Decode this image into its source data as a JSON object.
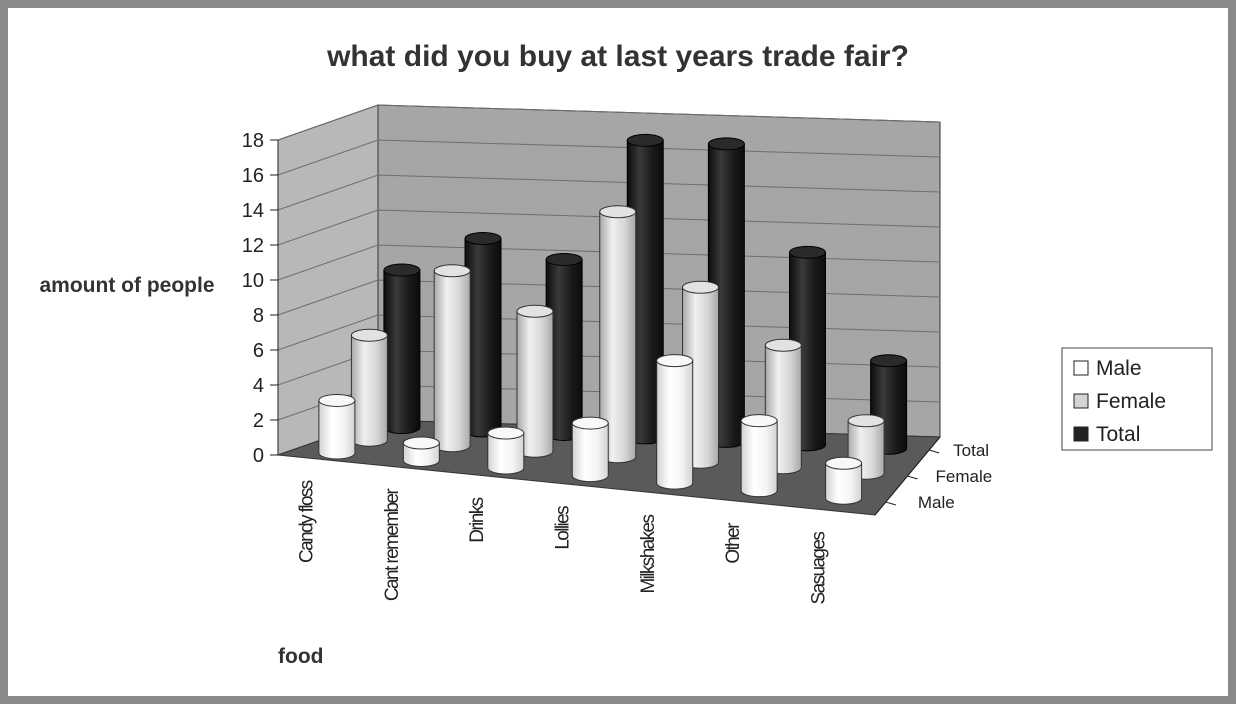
{
  "chart_data": {
    "type": "bar",
    "style": "3d-cylinder",
    "title": "what did you buy at last years trade fair?",
    "xlabel": "food",
    "ylabel": "amount of people",
    "ylim": [
      0,
      18
    ],
    "yticks": [
      "0",
      "2",
      "4",
      "6",
      "8",
      "10",
      "12",
      "14",
      "16",
      "18"
    ],
    "grid": true,
    "legend_position": "right",
    "categories": [
      "Candy floss",
      "Cant remember",
      "Drinks",
      "Lollies",
      "Milkshakes",
      "Other",
      "Sasuages"
    ],
    "series": [
      {
        "name": "Male",
        "values": [
          3,
          1,
          2,
          3,
          7,
          4,
          2
        ],
        "color": "#ffffff"
      },
      {
        "name": "Female",
        "values": [
          6,
          10,
          8,
          14,
          10,
          7,
          3
        ],
        "color": "#d4d4d4"
      },
      {
        "name": "Total",
        "values": [
          9,
          11,
          10,
          17,
          17,
          11,
          5
        ],
        "color": "#222222"
      }
    ],
    "colors": {
      "frame": "#8a8a8a",
      "wall": "#a6a6a6",
      "side_wall": "#b8b8b8",
      "floor": "#5a5a5a",
      "grid": "#6e6e6e"
    }
  }
}
